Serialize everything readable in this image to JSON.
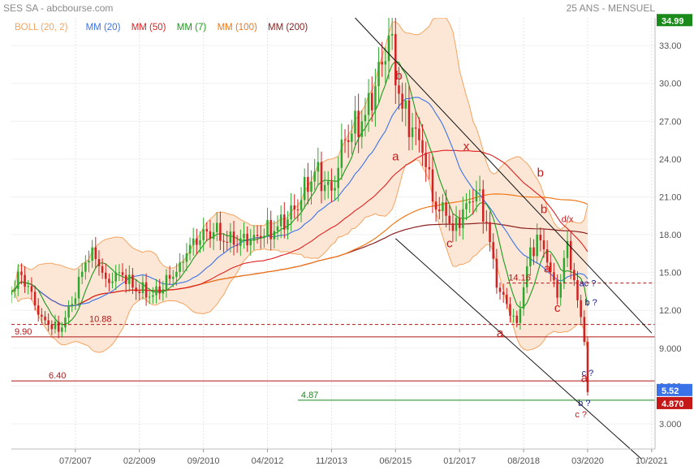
{
  "header": {
    "title": "SES SA - abcbourse.com",
    "timeframe": "25 ANS - MENSUEL"
  },
  "legend": [
    {
      "label": "BOLL (20, 2)",
      "color": "#f4a460"
    },
    {
      "label": "MM (20)",
      "color": "#3a72e8"
    },
    {
      "label": "MM (50)",
      "color": "#e02020"
    },
    {
      "label": "MM (7)",
      "color": "#1a9a1a"
    },
    {
      "label": "MM (100)",
      "color": "#f07818"
    },
    {
      "label": "MM (200)",
      "color": "#8b2020"
    }
  ],
  "colors": {
    "up": "#2ea82e",
    "down": "#d42020",
    "boll_fill": "#fbe3d0",
    "boll_line": "#f4a460"
  },
  "chart_data": {
    "type": "candlestick",
    "title": "SES SA - abcbourse.com",
    "timeframe": "25 ANS - MENSUEL",
    "y_ticks": [
      3.0,
      6.0,
      9.0,
      12.0,
      15.0,
      18.0,
      21.0,
      24.0,
      27.0,
      30.0,
      33.0
    ],
    "y_tick_labels": [
      "3.000",
      "6.000",
      "9.000",
      "12.00",
      "15.00",
      "18.00",
      "21.00",
      "24.00",
      "27.00",
      "30.00",
      "33.00"
    ],
    "ylim": [
      1.0,
      35.2
    ],
    "x_ticks": [
      "07/2007",
      "02/2009",
      "09/2010",
      "04/2012",
      "11/2013",
      "06/2015",
      "01/2017",
      "08/2018",
      "03/2020",
      "10/2021"
    ],
    "xlim": [
      "12/2005",
      "11/2021"
    ],
    "price_tags": [
      {
        "value": 34.99,
        "label": "34.99",
        "color": "#1a8a1a"
      },
      {
        "value": 5.52,
        "label": "5.52",
        "color": "#3a72e8"
      },
      {
        "value": 4.87,
        "label": "4.870",
        "color": "#c41818"
      }
    ],
    "horizontal_levels": [
      {
        "value": 9.9,
        "label": "9.90",
        "color": "#b01818",
        "style": "solid"
      },
      {
        "value": 10.88,
        "label": "10.88",
        "color": "#b01818",
        "style": "dashed"
      },
      {
        "value": 6.4,
        "label": "6.40",
        "color": "#b01818",
        "style": "solid"
      },
      {
        "value": 4.87,
        "label": "4.87",
        "color": "#1a8a1a",
        "style": "solid"
      },
      {
        "value": 14.16,
        "label": "14.16",
        "color": "#b01818",
        "style": "dashed"
      }
    ],
    "trendlines": [
      {
        "from": [
          "06/2014",
          35.2
        ],
        "to": [
          "10/2021",
          10.2
        ]
      },
      {
        "from": [
          "06/2015",
          17.7
        ],
        "to": [
          "07/2021",
          0.2
        ]
      }
    ],
    "annotations": [
      {
        "text": "b",
        "date": "07/2015",
        "value": 30.3,
        "color": "#c41818"
      },
      {
        "text": "a",
        "date": "06/2015",
        "value": 23.9,
        "color": "#c41818"
      },
      {
        "text": "x",
        "date": "03/2017",
        "value": 24.7,
        "color": "#c41818"
      },
      {
        "text": "c",
        "date": "10/2016",
        "value": 17.0,
        "color": "#c41818"
      },
      {
        "text": "b",
        "date": "01/2019",
        "value": 22.6,
        "color": "#c41818"
      },
      {
        "text": "b",
        "date": "02/2019",
        "value": 19.7,
        "color": "#c41818"
      },
      {
        "text": "d/x",
        "date": "09/2019",
        "value": 19.0,
        "color": "#c41818"
      },
      {
        "text": "a",
        "date": "03/2019",
        "value": 15.0,
        "color": "#c41818"
      },
      {
        "text": "c",
        "date": "06/2019",
        "value": 11.9,
        "color": "#c41818"
      },
      {
        "text": "a",
        "date": "01/2018",
        "value": 9.9,
        "color": "#c41818"
      },
      {
        "text": "ac ?",
        "date": "03/2020",
        "value": 13.9,
        "color": "#1a1a8a"
      },
      {
        "text": "b ?",
        "date": "04/2020",
        "value": 12.4,
        "color": "#1a1a8a"
      },
      {
        "text": "c ?",
        "date": "03/2020",
        "value": 6.8,
        "color": "#1a1a8a"
      },
      {
        "text": "a",
        "date": "02/2020",
        "value": 6.3,
        "color": "#c41818"
      },
      {
        "text": "b ?",
        "date": "02/2020",
        "value": 4.4,
        "color": "#1a1a8a"
      },
      {
        "text": "c ?",
        "date": "01/2020",
        "value": 3.5,
        "color": "#c41818"
      }
    ],
    "price_anchors": [
      [
        "12/2005",
        13.5
      ],
      [
        "03/2006",
        14.8
      ],
      [
        "09/2006",
        11.5
      ],
      [
        "02/2007",
        10.3
      ],
      [
        "06/2007",
        12.5
      ],
      [
        "10/2007",
        15.8
      ],
      [
        "12/2007",
        17.0
      ],
      [
        "04/2008",
        14.5
      ],
      [
        "09/2008",
        14.8
      ],
      [
        "12/2008",
        13.8
      ],
      [
        "06/2009",
        13.2
      ],
      [
        "11/2009",
        14.5
      ],
      [
        "02/2010",
        15.8
      ],
      [
        "06/2010",
        17.7
      ],
      [
        "12/2010",
        18.2
      ],
      [
        "06/2011",
        17.2
      ],
      [
        "12/2011",
        18.0
      ],
      [
        "06/2012",
        18.3
      ],
      [
        "12/2012",
        20.0
      ],
      [
        "06/2013",
        23.0
      ],
      [
        "11/2013",
        21.5
      ],
      [
        "03/2014",
        25.5
      ],
      [
        "09/2014",
        27.5
      ],
      [
        "02/2015",
        31.5
      ],
      [
        "04/2015",
        33.8
      ],
      [
        "08/2015",
        28.0
      ],
      [
        "11/2015",
        26.5
      ],
      [
        "02/2016",
        24.5
      ],
      [
        "06/2016",
        20.0
      ],
      [
        "09/2016",
        19.5
      ],
      [
        "11/2016",
        18.3
      ],
      [
        "03/2017",
        20.5
      ],
      [
        "06/2017",
        21.5
      ],
      [
        "09/2017",
        19.0
      ],
      [
        "12/2017",
        13.8
      ],
      [
        "03/2018",
        12.5
      ],
      [
        "06/2018",
        11.0
      ],
      [
        "09/2018",
        15.5
      ],
      [
        "12/2018",
        18.0
      ],
      [
        "03/2019",
        15.8
      ],
      [
        "06/2019",
        13.0
      ],
      [
        "09/2019",
        17.5
      ],
      [
        "12/2019",
        12.8
      ],
      [
        "02/2020",
        9.5
      ],
      [
        "03/2020",
        5.52
      ]
    ]
  }
}
